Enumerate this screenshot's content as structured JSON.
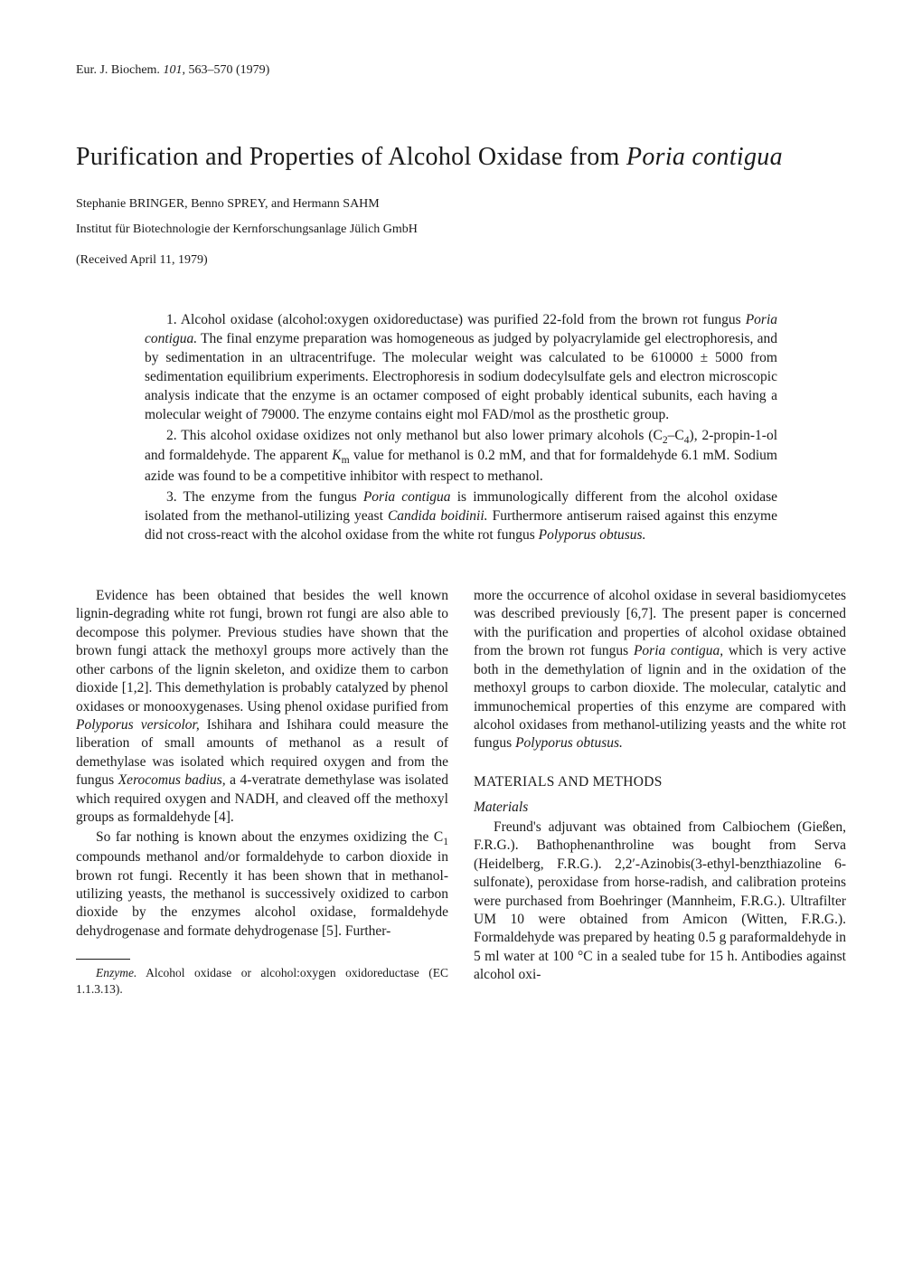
{
  "header_ref_prefix": "Eur. J. Biochem. ",
  "header_ref_vol": "101",
  "header_ref_suffix": ", 563–570 (1979)",
  "title_prefix": "Purification and Properties of Alcohol Oxidase from ",
  "title_species": "Poria contigua",
  "authors": "Stephanie BRINGER, Benno SPREY, and Hermann SAHM",
  "affiliation": "Institut für Biotechnologie der Kernforschungsanlage Jülich GmbH",
  "received": "(Received April 11, 1979)",
  "abstract": {
    "p1a": "1. Alcohol oxidase (alcohol:oxygen oxidoreductase) was purified 22-fold from the brown rot fungus ",
    "p1_species": "Poria contigua.",
    "p1b": " The final enzyme preparation was homogeneous as judged by polyacrylamide gel electrophoresis, and by sedimentation in an ultracentrifuge. The molecular weight was calculated to be 610000 ± 5000 from sedimentation equilibrium experiments. Electrophoresis in sodium dodecylsulfate gels and electron microscopic analysis indicate that the enzyme is an octamer composed of eight probably identical subunits, each having a molecular weight of 79000. The enzyme contains eight mol FAD/mol as the prosthetic group.",
    "p2a": "2. This alcohol oxidase oxidizes not only methanol but also lower primary alcohols (C",
    "p2_sub1": "2",
    "p2_mid": "–C",
    "p2_sub2": "4",
    "p2b": "), 2-propin-1-ol and formaldehyde. The apparent ",
    "p2_km": "K",
    "p2_km_sub": "m",
    "p2c": " value for methanol is 0.2 mM, and that for formaldehyde 6.1 mM. Sodium azide was found to be a competitive inhibitor with respect to methanol.",
    "p3a": "3. The enzyme from the fungus ",
    "p3_sp1": "Poria contigua",
    "p3b": " is immunologically different from the alcohol oxidase isolated from the methanol-utilizing yeast ",
    "p3_sp2": "Candida boidinii.",
    "p3c": " Furthermore antiserum raised against this enzyme did not cross-react with the alcohol oxidase from the white rot fungus ",
    "p3_sp3": "Polyporus obtusus."
  },
  "left_col": {
    "p1a": "Evidence has been obtained that besides the well known lignin-degrading white rot fungi, brown rot fungi are also able to decompose this polymer. Previous studies have shown that the brown fungi attack the methoxyl groups more actively than the other carbons of the lignin skeleton, and oxidize them to carbon dioxide [1,2]. This demethylation is probably catalyzed by phenol oxidases or monooxygenases. Using phenol oxidase purified from ",
    "p1_sp1": "Polyporus versicolor,",
    "p1b": " Ishihara and Ishihara could measure the liberation of small amounts of methanol as a result of demethylase was isolated which required oxygen and from the fungus ",
    "p1_sp2": "Xerocomus badius,",
    "p1c": " a 4-veratrate demethylase was isolated which required oxygen and NADH, and cleaved off the methoxyl groups as formaldehyde [4].",
    "p2a": "So far nothing is known about the enzymes oxidizing the C",
    "p2_sub": "1",
    "p2b": " compounds methanol and/or formaldehyde to carbon dioxide in brown rot fungi. Recently it has been shown that in methanol-utilizing yeasts, the methanol is successively oxidized to carbon dioxide by the enzymes alcohol oxidase, formaldehyde dehydrogenase and formate dehydrogenase [5]. Further-",
    "fn_label": "Enzyme.",
    "fn_text": " Alcohol oxidase or alcohol:oxygen oxidoreductase (EC 1.1.3.13)."
  },
  "right_col": {
    "p1a": "more the occurrence of alcohol oxidase in several basidiomycetes was described previously [6,7]. The present paper is concerned with the purification and properties of alcohol oxidase obtained from the brown rot fungus ",
    "p1_sp1": "Poria contigua,",
    "p1b": " which is very active both in the demethylation of lignin and in the oxidation of the methoxyl groups to carbon dioxide. The molecular, catalytic and immunochemical properties of this enzyme are compared with alcohol oxidases from methanol-utilizing yeasts and the white rot fungus ",
    "p1_sp2": "Polyporus obtusus.",
    "heading": "MATERIALS AND METHODS",
    "subheading": "Materials",
    "p2": "Freund's adjuvant was obtained from Calbiochem (Gießen, F.R.G.). Bathophenanthroline was bought from Serva (Heidelberg, F.R.G.). 2,2′-Azinobis(3-ethyl-benzthiazoline 6-sulfonate), peroxidase from horse-radish, and calibration proteins were purchased from Boehringer (Mannheim, F.R.G.). Ultrafilter UM 10 were obtained from Amicon (Witten, F.R.G.). Formaldehyde was prepared by heating 0.5 g paraformaldehyde in 5 ml water at 100 °C in a sealed tube for 15 h. Antibodies against alcohol oxi-"
  }
}
